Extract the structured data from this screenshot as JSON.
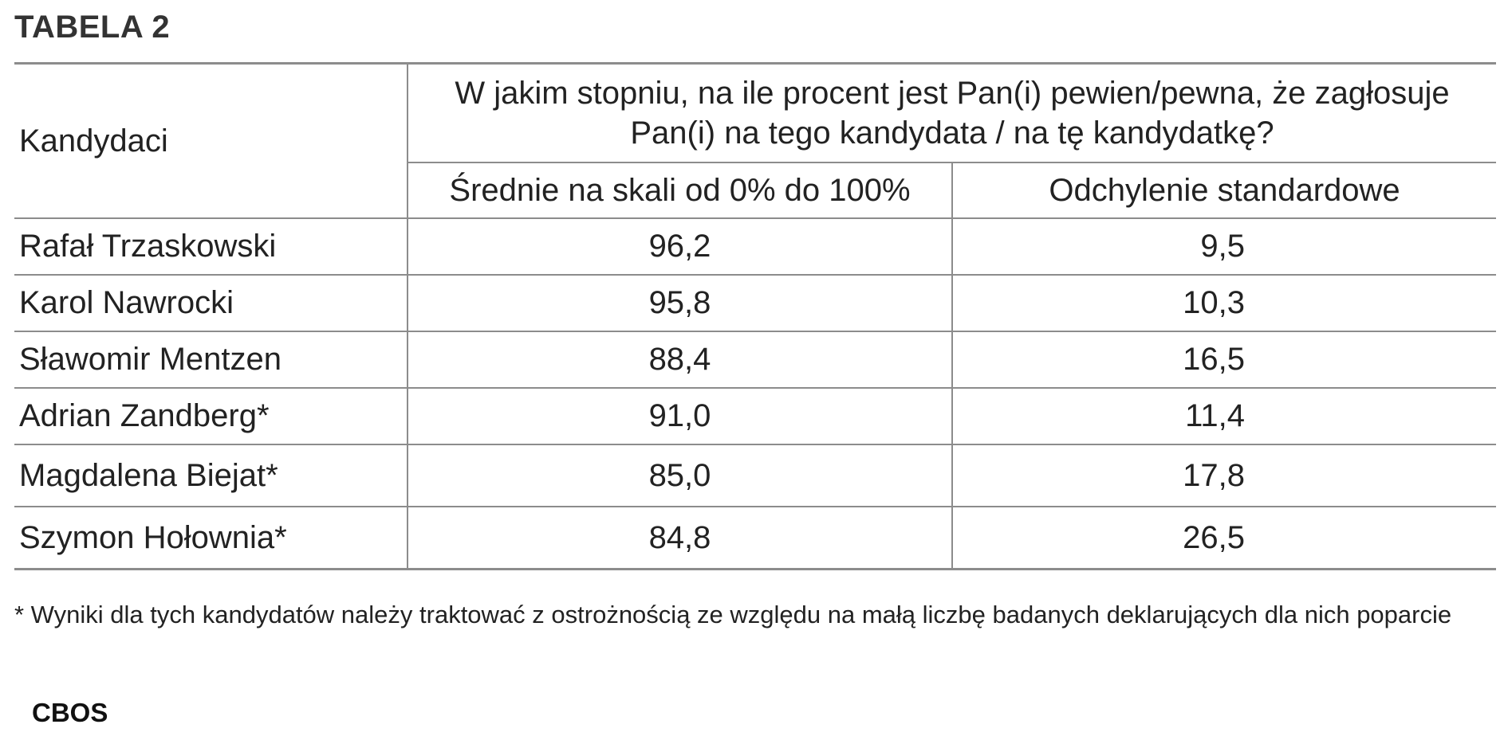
{
  "title": "TABELA 2",
  "table": {
    "header": {
      "candidates_label": "Kandydaci",
      "question": "W jakim stopniu, na ile procent jest Pan(i) pewien/pewna, że zagłosuje Pan(i) na tego kandydata / na tę kandydatkę?",
      "col_mean": "Średnie na skali od 0% do 100%",
      "col_sd": "Odchylenie standardowe"
    },
    "rows": [
      {
        "name": "Rafał Trzaskowski",
        "mean": "96,2",
        "sd": "9,5"
      },
      {
        "name": "Karol Nawrocki",
        "mean": "95,8",
        "sd": "10,3"
      },
      {
        "name": "Sławomir Mentzen",
        "mean": "88,4",
        "sd": "16,5"
      },
      {
        "name": "Adrian Zandberg*",
        "mean": "91,0",
        "sd": "11,4"
      },
      {
        "name": "Magdalena Biejat*",
        "mean": "85,0",
        "sd": "17,8"
      },
      {
        "name": "Szymon Hołownia*",
        "mean": "84,8",
        "sd": "26,5"
      }
    ]
  },
  "footnote": "* Wyniki dla tych kandydatów należy traktować z ostrożnością ze względu na małą liczbę badanych deklarujących dla nich poparcie",
  "source": "CBOS"
}
